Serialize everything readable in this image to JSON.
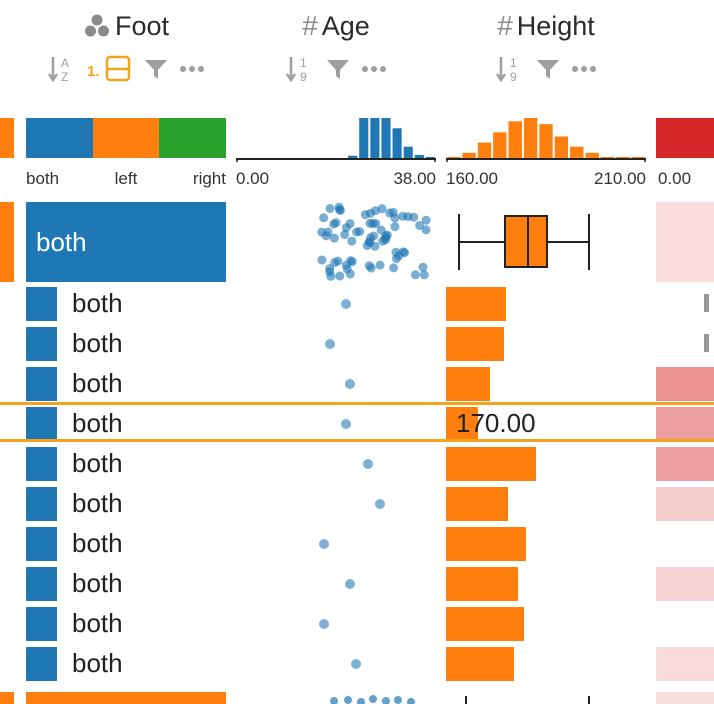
{
  "columns": {
    "foot": {
      "title": "Foot",
      "type_icon": "categorical-icon"
    },
    "age": {
      "title": "Age",
      "type_icon": "numeric-icon"
    },
    "height": {
      "title": "Height",
      "type_icon": "numeric-icon"
    }
  },
  "foot_summary": {
    "categories": [
      "both",
      "left",
      "right"
    ],
    "colors": [
      "#1f77b4",
      "#ff7f0e",
      "#2ca02c"
    ]
  },
  "age_summary": {
    "min_label": "0.00",
    "max_label": "38.00",
    "histogram": [
      0,
      0,
      0,
      0,
      0,
      0,
      0,
      0,
      0,
      0,
      0.08,
      1,
      1,
      1,
      0.75,
      0.3,
      0.1,
      0.05
    ]
  },
  "height_summary": {
    "min_label": "160.00",
    "max_label": "210.00",
    "histogram": [
      0.05,
      0.15,
      0.4,
      0.65,
      0.92,
      1,
      0.85,
      0.55,
      0.3,
      0.15,
      0.05,
      0.05,
      0.05
    ]
  },
  "partial_summary": {
    "min_label": "0.00"
  },
  "group_row": {
    "foot": "both"
  },
  "rows": [
    {
      "foot": "both",
      "age_frac": 0.55,
      "height_frac": 0.3,
      "right_level": 0
    },
    {
      "foot": "both",
      "age_frac": 0.47,
      "height_frac": 0.29,
      "right_level": 0
    },
    {
      "foot": "both",
      "age_frac": 0.57,
      "height_frac": 0.22,
      "right_level": 0.7
    },
    {
      "foot": "both",
      "age_frac": 0.55,
      "height_frac": 0.16,
      "height_label": "170.00",
      "right_level": 0.6,
      "highlighted": true
    },
    {
      "foot": "both",
      "age_frac": 0.66,
      "height_frac": 0.45,
      "right_level": 0.6
    },
    {
      "foot": "both",
      "age_frac": 0.72,
      "height_frac": 0.31,
      "right_level": 0.2
    },
    {
      "foot": "both",
      "age_frac": 0.44,
      "height_frac": 0.4,
      "right_level": 0
    },
    {
      "foot": "both",
      "age_frac": 0.57,
      "height_frac": 0.36,
      "right_level": 0.15
    },
    {
      "foot": "both",
      "age_frac": 0.44,
      "height_frac": 0.39,
      "right_level": 0
    },
    {
      "foot": "both",
      "age_frac": 0.6,
      "height_frac": 0.34,
      "right_level": 0.08
    }
  ],
  "colors": {
    "blue": "#1f77b4",
    "orange": "#ff7f0e",
    "highlight": "#f2a51c",
    "dot": "#7fb0d6",
    "red": "#d62728"
  }
}
